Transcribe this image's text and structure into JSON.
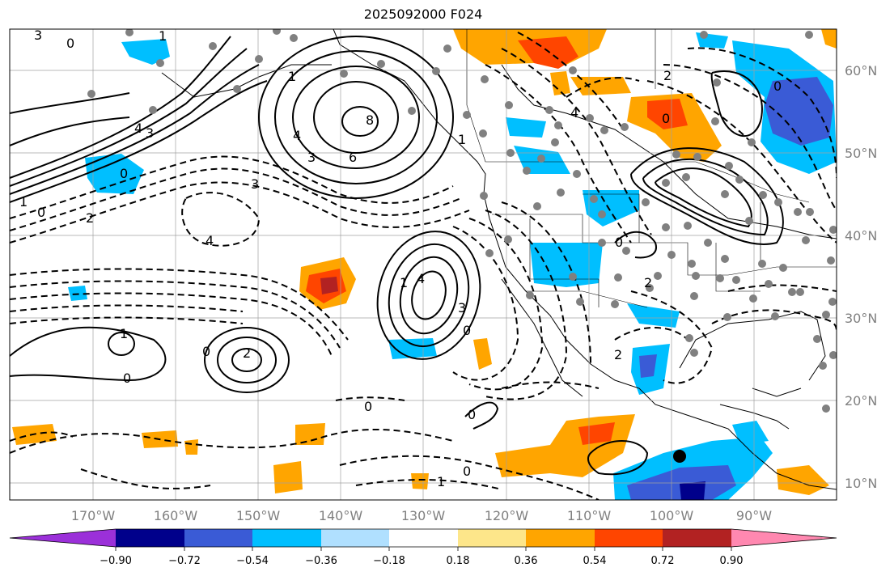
{
  "title": "2025092000 F024",
  "map": {
    "lon_labels": [
      "170°W",
      "160°W",
      "150°W",
      "140°W",
      "130°W",
      "120°W",
      "110°W",
      "100°W",
      "90°W"
    ],
    "lat_labels": [
      "60°N",
      "50°N",
      "40°N",
      "30°N",
      "20°N",
      "10°N"
    ],
    "land_color": "#ffffff",
    "grid_color": "#a0a0a0"
  },
  "contour_labels": [
    "3",
    "0",
    "1",
    "3",
    "4",
    "4",
    "3",
    "6",
    "8",
    "1",
    "0",
    "2",
    "3",
    "4",
    "1",
    "0",
    "1",
    "0",
    "2",
    "0",
    "4",
    "3",
    "0",
    "1",
    "2",
    "4",
    "2",
    "0",
    "0",
    "1",
    "0",
    "2",
    "0",
    "0",
    "0",
    "1"
  ],
  "colorbar": {
    "colors": [
      "#9b30d9",
      "#00008b",
      "#3a5bd6",
      "#00bfff",
      "#b0e0ff",
      "#ffffff",
      "#fde68a",
      "#ffa500",
      "#ff4500",
      "#b22222",
      "#ff88b0"
    ],
    "tick_labels": [
      "−0.90",
      "−0.72",
      "−0.54",
      "−0.36",
      "−0.18",
      "0.18",
      "0.36",
      "0.54",
      "0.72",
      "0.90"
    ]
  }
}
